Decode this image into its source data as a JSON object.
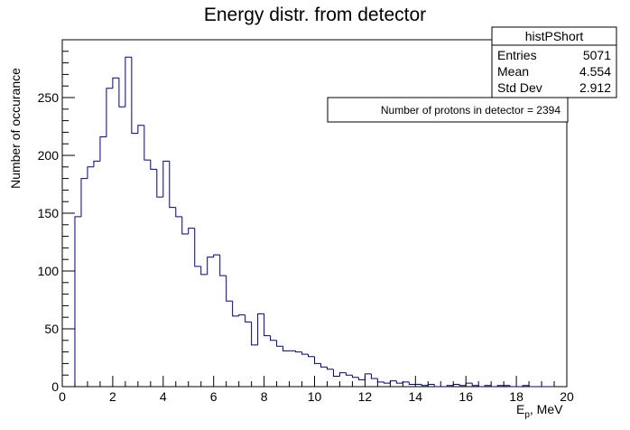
{
  "chart_data": {
    "type": "bar",
    "title": "Energy distr. from detector",
    "xlabel": "E",
    "xlabel_sub": "p",
    "xlabel_suffix": ", MeV",
    "ylabel": "Number of occurance",
    "xlim": [
      0,
      20
    ],
    "ylim": [
      0,
      300
    ],
    "x_ticks": [
      0,
      2,
      4,
      6,
      8,
      10,
      12,
      14,
      16,
      18,
      20
    ],
    "y_ticks": [
      0,
      50,
      100,
      150,
      200,
      250
    ],
    "grid": false,
    "bin_width": 0.25,
    "x_start": 0.5,
    "values": [
      147,
      180,
      190,
      195,
      216,
      258,
      267,
      242,
      285,
      219,
      226,
      196,
      188,
      164,
      195,
      155,
      147,
      132,
      137,
      104,
      97,
      112,
      114,
      96,
      74,
      61,
      62,
      56,
      36,
      63,
      44,
      40,
      35,
      31,
      31,
      30,
      28,
      26,
      20,
      17,
      15,
      9,
      12,
      10,
      8,
      6,
      11,
      7,
      4,
      3,
      5,
      3,
      4,
      2,
      2,
      1,
      2,
      0,
      0,
      1,
      2,
      1,
      3,
      1,
      0,
      1,
      0,
      1,
      1,
      0,
      0,
      1,
      0,
      0,
      0,
      0
    ]
  },
  "stats_box": {
    "name": "histPShort",
    "rows": [
      {
        "label": "Entries",
        "value": "5071"
      },
      {
        "label": "Mean",
        "value": "4.554"
      },
      {
        "label": "Std Dev",
        "value": "2.912"
      }
    ]
  },
  "annotation": "Number of protons in detector = 2394"
}
